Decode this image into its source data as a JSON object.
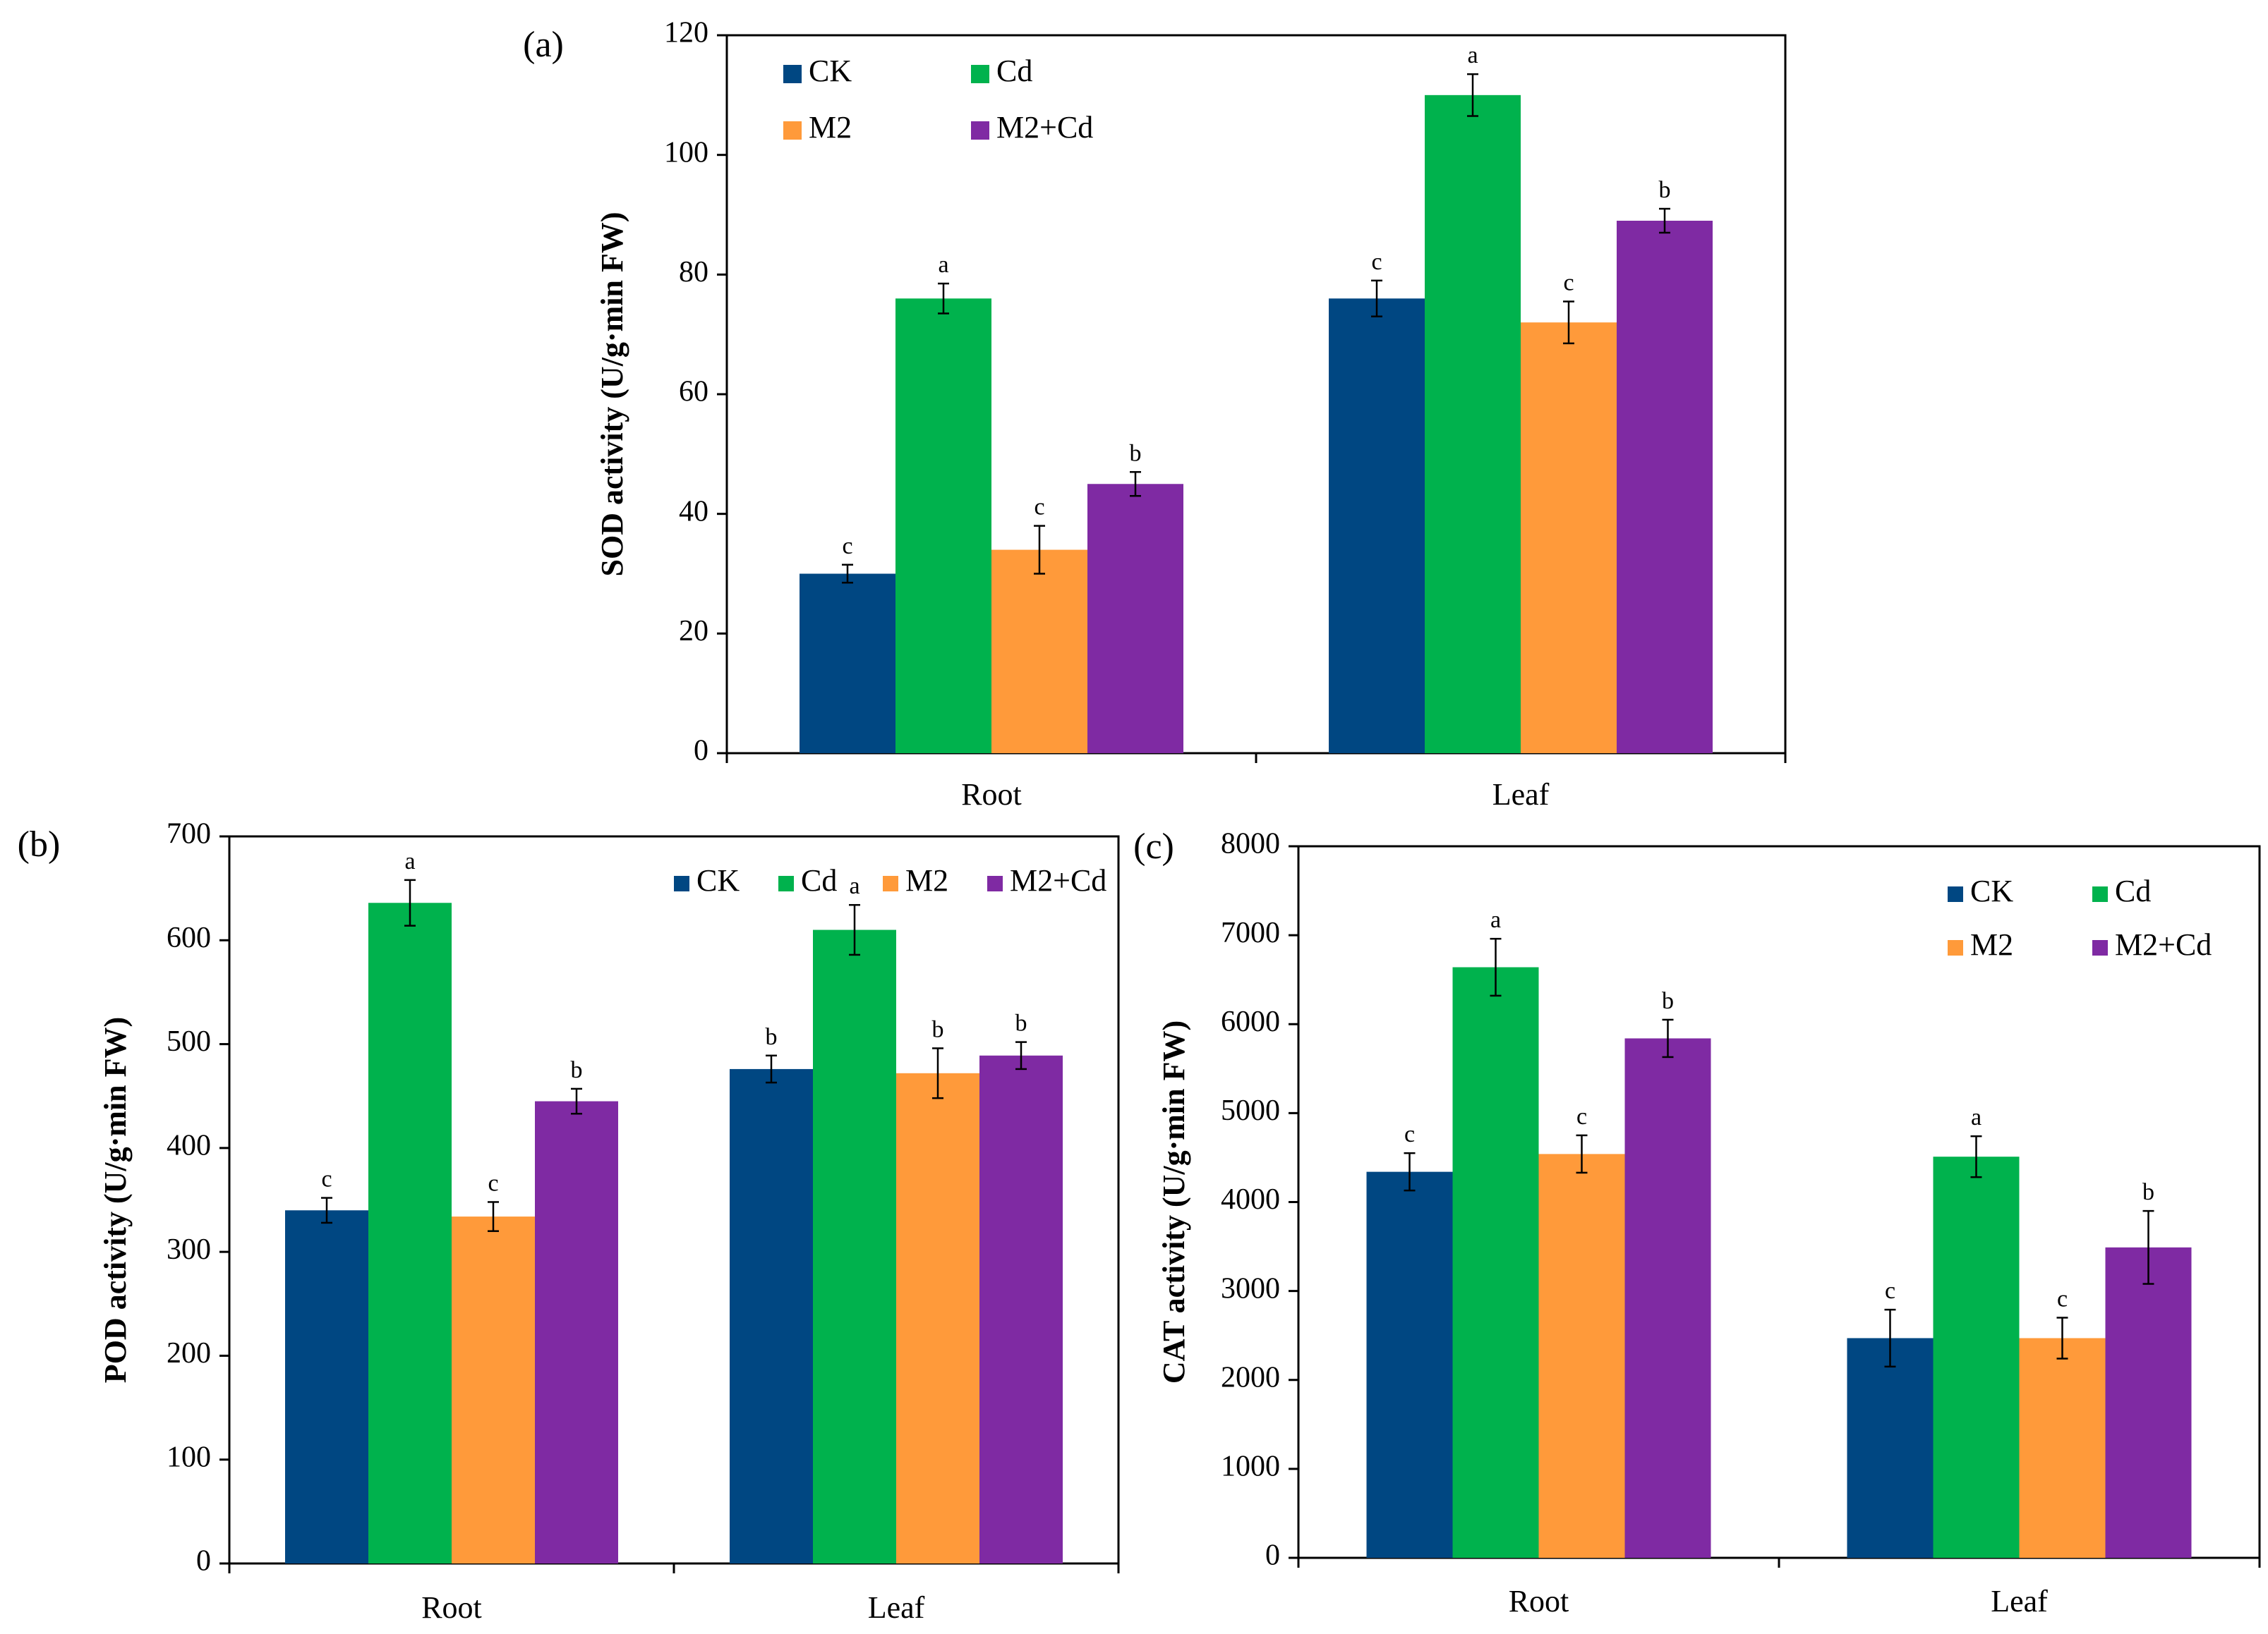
{
  "series_colors": {
    "CK": "#004782",
    "Cd": "#00b24d",
    "M2": "#ff9a3a",
    "M2+Cd": "#7f2aa3"
  },
  "chart_data": [
    {
      "panel": "(a)",
      "type": "bar",
      "ylabel": "SOD activity (U/g·min FW)",
      "categories": [
        "Root",
        "Leaf"
      ],
      "ylim": [
        0,
        120
      ],
      "yticks": [
        0,
        20,
        40,
        60,
        80,
        100,
        120
      ],
      "legend": "top-left",
      "series": [
        {
          "name": "CK",
          "values": [
            30,
            76
          ],
          "errors": [
            1.5,
            3
          ],
          "letters": [
            "c",
            "c"
          ]
        },
        {
          "name": "Cd",
          "values": [
            76,
            110
          ],
          "errors": [
            2.5,
            3.5
          ],
          "letters": [
            "a",
            "a"
          ]
        },
        {
          "name": "M2",
          "values": [
            34,
            72
          ],
          "errors": [
            4,
            3.5
          ],
          "letters": [
            "c",
            "c"
          ]
        },
        {
          "name": "M2+Cd",
          "values": [
            45,
            89
          ],
          "errors": [
            2,
            2
          ],
          "letters": [
            "b",
            "b"
          ]
        }
      ]
    },
    {
      "panel": "(b)",
      "type": "bar",
      "ylabel": "POD activity (U/g·min FW)",
      "categories": [
        "Root",
        "Leaf"
      ],
      "ylim": [
        0,
        700
      ],
      "yticks": [
        0,
        100,
        200,
        300,
        400,
        500,
        600,
        700
      ],
      "legend": "top-right",
      "series": [
        {
          "name": "CK",
          "values": [
            340,
            476
          ],
          "errors": [
            12,
            13
          ],
          "letters": [
            "c",
            "b"
          ]
        },
        {
          "name": "Cd",
          "values": [
            636,
            610
          ],
          "errors": [
            22,
            24
          ],
          "letters": [
            "a",
            "a"
          ]
        },
        {
          "name": "M2",
          "values": [
            334,
            472
          ],
          "errors": [
            14,
            24
          ],
          "letters": [
            "c",
            "b"
          ]
        },
        {
          "name": "M2+Cd",
          "values": [
            445,
            489
          ],
          "errors": [
            12,
            13
          ],
          "letters": [
            "b",
            "b"
          ]
        }
      ]
    },
    {
      "panel": "(c)",
      "type": "bar",
      "ylabel": "CAT activity (U/g·min FW)",
      "categories": [
        "Root",
        "Leaf"
      ],
      "ylim": [
        0,
        8000
      ],
      "yticks": [
        0,
        1000,
        2000,
        3000,
        4000,
        5000,
        6000,
        7000,
        8000
      ],
      "legend": "top-right",
      "series": [
        {
          "name": "CK",
          "values": [
            4340,
            2470
          ],
          "errors": [
            210,
            320
          ],
          "letters": [
            "c",
            "c"
          ]
        },
        {
          "name": "Cd",
          "values": [
            6640,
            4510
          ],
          "errors": [
            320,
            230
          ],
          "letters": [
            "a",
            "a"
          ]
        },
        {
          "name": "M2",
          "values": [
            4540,
            2470
          ],
          "errors": [
            210,
            230
          ],
          "letters": [
            "c",
            "c"
          ]
        },
        {
          "name": "M2+Cd",
          "values": [
            5840,
            3490
          ],
          "errors": [
            210,
            410
          ],
          "letters": [
            "b",
            "b"
          ]
        }
      ]
    }
  ]
}
